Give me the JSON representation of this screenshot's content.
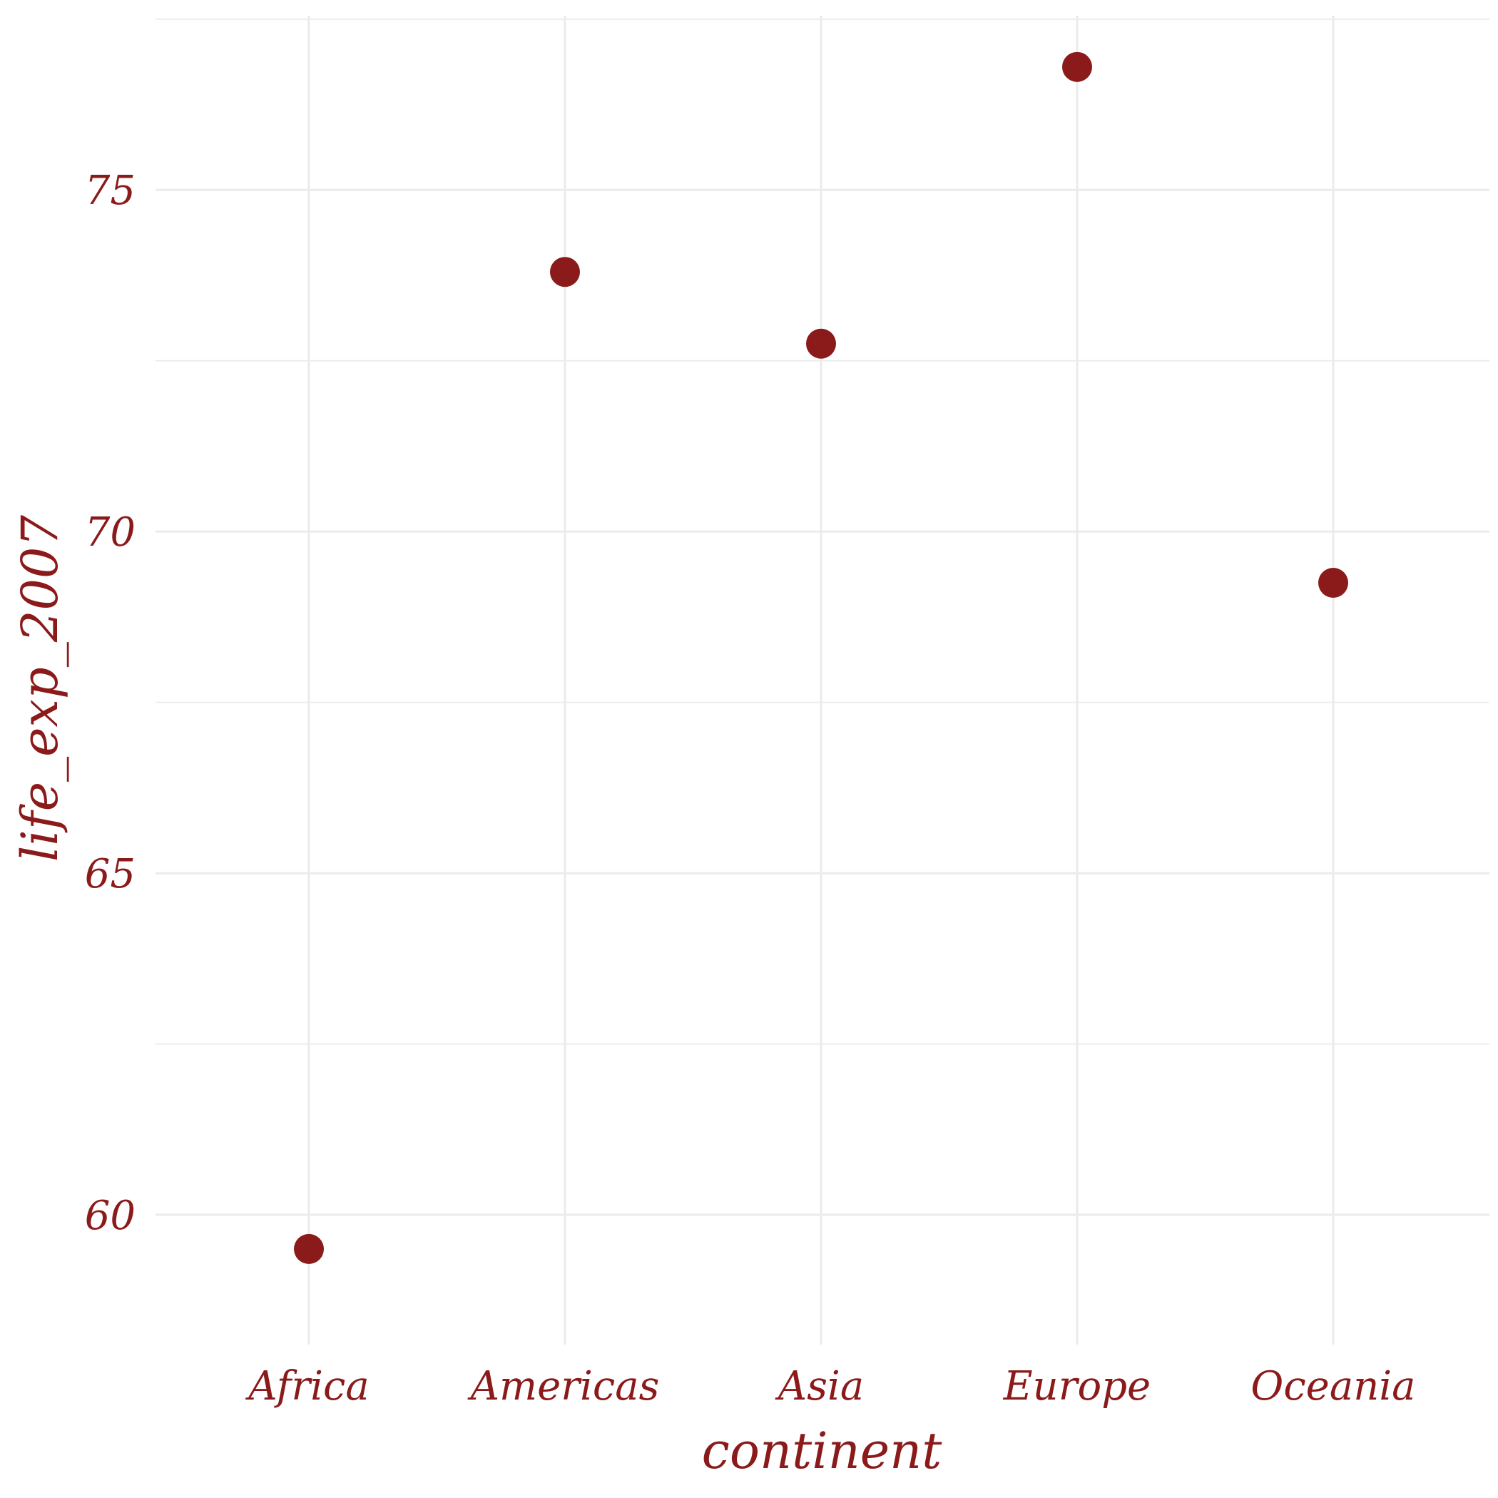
{
  "chart_data": {
    "type": "scatter",
    "title": "",
    "xlabel": "continent",
    "ylabel": "life_exp_2007",
    "categories": [
      "Africa",
      "Americas",
      "Asia",
      "Europe",
      "Oceania"
    ],
    "values": [
      59.5,
      73.8,
      72.75,
      76.8,
      69.25
    ],
    "ylim": [
      58.1,
      77.55
    ],
    "yticks": [
      60,
      65,
      70,
      75
    ],
    "yticks_minor": [
      62.5,
      67.5,
      72.5,
      77.5
    ],
    "ytick_labels": [
      "60",
      "65",
      "70",
      "75"
    ],
    "grid": true,
    "legend": "none",
    "point_color": "#8b1a1a",
    "text_color": "#8b1a1a",
    "grid_color": "#ebebeb",
    "background": "#ffffff"
  }
}
